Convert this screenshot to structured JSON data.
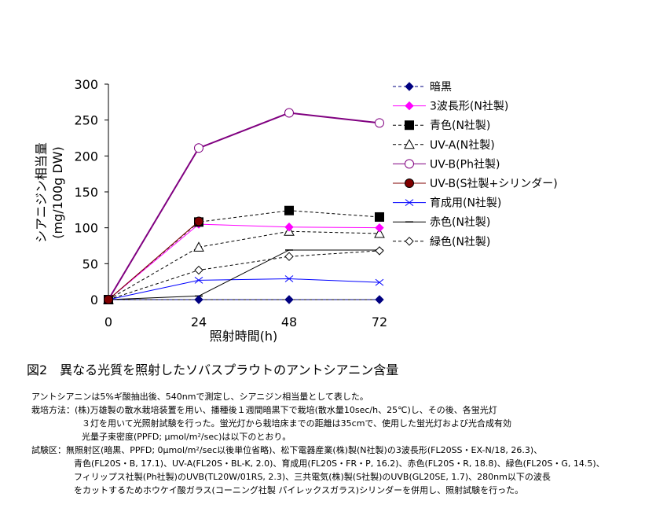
{
  "chart_data": {
    "type": "line",
    "x": [
      0,
      24,
      48,
      72
    ],
    "xlabel": "照射時間(h)",
    "ylabel": "シアニジン相当量",
    "ylabel2": "(mg/100g DW)",
    "ylim": [
      0,
      300
    ],
    "yticks": [
      0,
      50,
      100,
      150,
      200,
      250,
      300
    ],
    "xticks": [
      "0",
      "24",
      "48",
      "72"
    ],
    "legend_position": "right",
    "series": [
      {
        "name": "暗黒",
        "values": [
          0,
          0,
          0,
          0
        ],
        "color": "#000080",
        "dash": "dashed",
        "marker": "diamond-filled"
      },
      {
        "name": "3波長形(N社製)",
        "values": [
          0,
          105,
          101,
          100
        ],
        "color": "#ff00ff",
        "dash": "solid",
        "marker": "diamond-filled"
      },
      {
        "name": "青色(N社製)",
        "values": [
          0,
          108,
          124,
          115
        ],
        "color": "#000000",
        "dash": "dashed",
        "marker": "square-filled"
      },
      {
        "name": "UV-A(N社製)",
        "values": [
          0,
          73,
          95,
          92
        ],
        "color": "#000000",
        "dash": "dashed",
        "marker": "triangle-open"
      },
      {
        "name": "UV-B(Ph社製)",
        "values": [
          0,
          211,
          260,
          246
        ],
        "color": "#800080",
        "dash": "solid",
        "marker": "circle-open"
      },
      {
        "name": "UV-B(S社製+シリンダー)",
        "values": [
          0,
          109,
          null,
          null
        ],
        "color": "#800000",
        "dash": "solid",
        "marker": "circle-filled"
      },
      {
        "name": "育成用(N社製)",
        "values": [
          0,
          27,
          29,
          24
        ],
        "color": "#0000ff",
        "dash": "solid",
        "marker": "x"
      },
      {
        "name": "赤色(N社製)",
        "values": [
          0,
          5,
          69,
          69
        ],
        "color": "#000000",
        "dash": "solid",
        "marker": "dash"
      },
      {
        "name": "緑色(N社製)",
        "values": [
          0,
          41,
          60,
          68
        ],
        "color": "#000000",
        "dash": "dashed",
        "marker": "diamond-open"
      }
    ]
  },
  "caption": "図2　異なる光質を照射したソバスプラウトのアントシアニン含量",
  "notes": {
    "line1": "アントシアニンは5%ギ酸抽出後、540nmで測定し、シアニジン相当量として表した。",
    "line2": "栽培方法：(株)万雄製の散水栽培装置を用い、播種後１週間暗黒下で栽培(散水量10sec/h、25℃)し、その後、各蛍光灯",
    "line3": "３灯を用いて光照射試験を行った。蛍光灯から栽培床までの距離は35cmで、使用した蛍光灯および光合成有効",
    "line4": "光量子束密度(PPFD; μmol/m²/sec)は以下のとおり。",
    "line5": "試験区：無照射区(暗黒、PPFD; 0μmol/m²/sec以後単位省略)、松下電器産業(株)製(N社製)の3波長形(FL20SS・EX-N/18, 26.3)、",
    "line6": "青色(FL20S・B, 17.1)、UV-A(FL20S・BL-K, 2.0)、育成用(FL20S・FR・P, 16.2)、赤色(FL20S・R, 18.8)、緑色(FL20S・G, 14.5)、",
    "line7": "フィリップス社製(Ph社製)のUVB(TL20W/01RS, 2.3)、三共電気(株)製(S社製)のUVB(GL20SE, 1.7)、280nm以下の波長",
    "line8": "をカットするためホウケイ酸ガラス(コーニング社製 パイレックスガラス)シリンダーを併用し、照射試験を行った。"
  }
}
